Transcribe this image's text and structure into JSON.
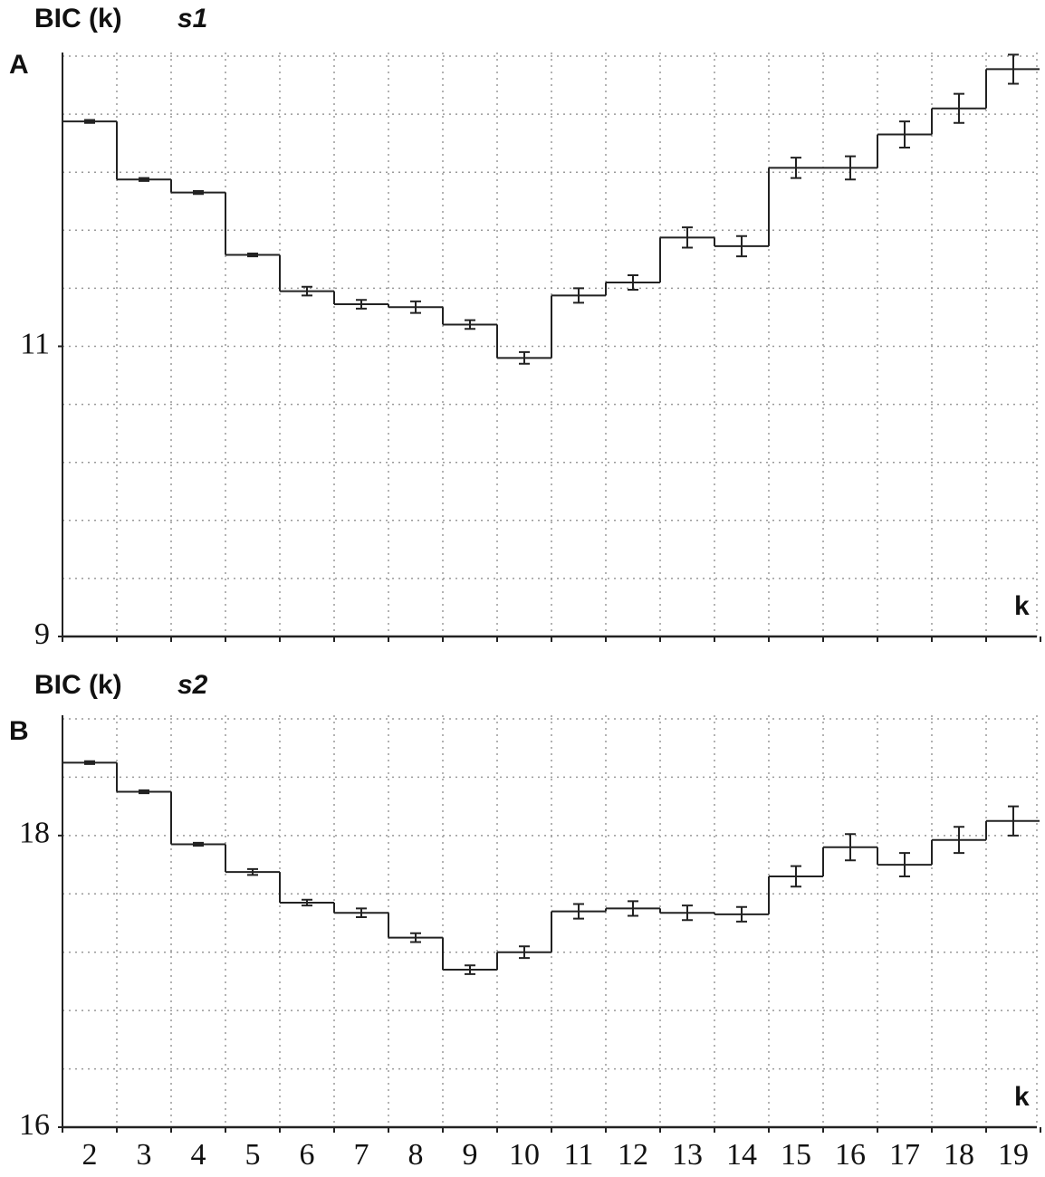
{
  "chart_data": [
    {
      "type": "step",
      "panel": "A",
      "title": "BIC (k)",
      "subtitle": "s1",
      "x_label": "k",
      "x": [
        2,
        3,
        4,
        5,
        6,
        7,
        8,
        9,
        10,
        11,
        12,
        13,
        14,
        15,
        16,
        17,
        18,
        19
      ],
      "values": [
        12.55,
        12.15,
        12.06,
        11.63,
        11.38,
        11.29,
        11.27,
        11.15,
        10.92,
        11.35,
        11.44,
        11.75,
        11.69,
        12.23,
        12.23,
        12.46,
        12.64,
        12.91
      ],
      "errors": [
        0.01,
        0.01,
        0.01,
        0.01,
        0.03,
        0.03,
        0.04,
        0.03,
        0.04,
        0.05,
        0.05,
        0.07,
        0.07,
        0.07,
        0.08,
        0.09,
        0.1,
        0.1
      ],
      "color": "#222222",
      "ylim": [
        9,
        13
      ],
      "yticks": [
        9,
        11
      ],
      "ygrid": [
        9.4,
        9.8,
        10.2,
        10.6,
        11,
        11.4,
        11.8,
        12.2,
        12.6,
        13
      ],
      "grid": true
    },
    {
      "type": "step",
      "panel": "B",
      "title": "BIC (k)",
      "subtitle": "s2",
      "x_label": "k",
      "x": [
        2,
        3,
        4,
        5,
        6,
        7,
        8,
        9,
        10,
        11,
        12,
        13,
        14,
        15,
        16,
        17,
        18,
        19
      ],
      "values": [
        18.5,
        18.3,
        17.94,
        17.75,
        17.54,
        17.47,
        17.3,
        17.08,
        17.2,
        17.48,
        17.5,
        17.47,
        17.46,
        17.72,
        17.92,
        17.8,
        17.97,
        18.1
      ],
      "errors": [
        0.01,
        0.01,
        0.01,
        0.02,
        0.02,
        0.03,
        0.03,
        0.03,
        0.04,
        0.05,
        0.05,
        0.05,
        0.05,
        0.07,
        0.09,
        0.08,
        0.09,
        0.1
      ],
      "color": "#222222",
      "ylim": [
        16,
        18.8
      ],
      "yticks": [
        16,
        18
      ],
      "ygrid": [
        16.4,
        16.8,
        17.2,
        17.6,
        18,
        18.4,
        18.8
      ],
      "grid": true
    }
  ]
}
